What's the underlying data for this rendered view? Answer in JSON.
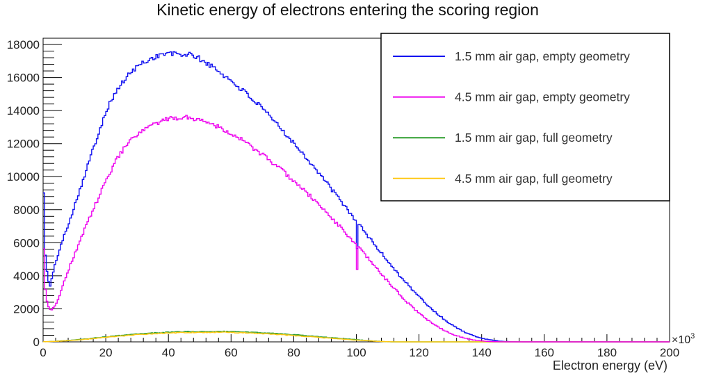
{
  "chart_data": {
    "type": "line",
    "subtype": "histogram-step",
    "title": "Kinetic energy of electrons entering the scoring region",
    "xlabel": "Electron energy (eV)",
    "ylabel": "",
    "x_axis_multiplier": "×10",
    "x_axis_multiplier_exponent": "3",
    "xlim": [
      0,
      200
    ],
    "ylim": [
      0,
      18380
    ],
    "x_ticks": [
      0,
      20,
      40,
      60,
      80,
      100,
      120,
      140,
      160,
      180,
      200
    ],
    "x_minor_tick_step": 4,
    "y_ticks": [
      0,
      2000,
      4000,
      6000,
      8000,
      10000,
      12000,
      14000,
      16000,
      18000
    ],
    "y_minor_tick_step": 400,
    "grid": false,
    "bin_width": 0.5,
    "legend_position": "top-right",
    "frame_color": "#000000",
    "text_color": "#222222",
    "draw_order": [
      0,
      2,
      3,
      1
    ],
    "series": [
      {
        "name": "1.5 mm air gap, empty geometry",
        "color": "#0f0ff0",
        "seed": 101,
        "noise": 1.25,
        "anomalies": [
          [
            100.25,
            5650
          ]
        ],
        "points": [
          [
            0.25,
            9100
          ],
          [
            0.75,
            5200
          ],
          [
            1.5,
            3800
          ],
          [
            2.2,
            3350
          ],
          [
            3.3,
            4250
          ],
          [
            4.4,
            5100
          ],
          [
            6.7,
            6400
          ],
          [
            9,
            7650
          ],
          [
            11,
            8800
          ],
          [
            13,
            9950
          ],
          [
            15.5,
            11400
          ],
          [
            17.8,
            12700
          ],
          [
            20,
            13950
          ],
          [
            22,
            14700
          ],
          [
            24,
            15350
          ],
          [
            26,
            15850
          ],
          [
            28,
            16300
          ],
          [
            30,
            16650
          ],
          [
            32,
            16900
          ],
          [
            34,
            17100
          ],
          [
            36,
            17280
          ],
          [
            38,
            17400
          ],
          [
            40,
            17460
          ],
          [
            42,
            17430
          ],
          [
            44,
            17380
          ],
          [
            46,
            17400
          ],
          [
            48,
            17330
          ],
          [
            50,
            17130
          ],
          [
            52,
            16900
          ],
          [
            54,
            16650
          ],
          [
            56,
            16380
          ],
          [
            58,
            16100
          ],
          [
            60,
            15800
          ],
          [
            62,
            15500
          ],
          [
            64,
            15180
          ],
          [
            66,
            14840
          ],
          [
            68,
            14480
          ],
          [
            70,
            14100
          ],
          [
            72,
            13710
          ],
          [
            74,
            13310
          ],
          [
            76,
            12900
          ],
          [
            78,
            12480
          ],
          [
            80,
            12050
          ],
          [
            82,
            11610
          ],
          [
            84,
            11160
          ],
          [
            86,
            10700
          ],
          [
            88,
            10230
          ],
          [
            90,
            9750
          ],
          [
            92,
            9270
          ],
          [
            94,
            8780
          ],
          [
            96,
            8290
          ],
          [
            98,
            7800
          ],
          [
            100,
            7310
          ],
          [
            102,
            6820
          ],
          [
            104,
            6330
          ],
          [
            106,
            5850
          ],
          [
            108,
            5370
          ],
          [
            110,
            4900
          ],
          [
            112,
            4440
          ],
          [
            114,
            3990
          ],
          [
            116,
            3560
          ],
          [
            118,
            3140
          ],
          [
            120,
            2740
          ],
          [
            122,
            2360
          ],
          [
            124,
            2000
          ],
          [
            126,
            1670
          ],
          [
            128,
            1370
          ],
          [
            130,
            1100
          ],
          [
            132,
            860
          ],
          [
            134,
            650
          ],
          [
            136,
            470
          ],
          [
            138,
            330
          ],
          [
            140,
            220
          ],
          [
            142,
            140
          ],
          [
            144,
            80
          ],
          [
            146,
            40
          ],
          [
            148,
            18
          ],
          [
            150,
            6
          ],
          [
            152,
            1
          ],
          [
            154,
            0
          ],
          [
            200,
            0
          ]
        ]
      },
      {
        "name": "4.5 mm air gap, empty geometry",
        "color": "#ee00ee",
        "seed": 202,
        "noise": 1.25,
        "anomalies": [
          [
            100.25,
            4390
          ]
        ],
        "points": [
          [
            0.25,
            5700
          ],
          [
            0.75,
            3100
          ],
          [
            1.5,
            2200
          ],
          [
            2.5,
            1900
          ],
          [
            4,
            2250
          ],
          [
            5.5,
            2950
          ],
          [
            7,
            3800
          ],
          [
            9,
            4780
          ],
          [
            11,
            5760
          ],
          [
            13,
            6700
          ],
          [
            15,
            7580
          ],
          [
            17,
            8420
          ],
          [
            19,
            9300
          ],
          [
            21,
            10100
          ],
          [
            23,
            10880
          ],
          [
            25,
            11500
          ],
          [
            27,
            11980
          ],
          [
            29,
            12350
          ],
          [
            31,
            12650
          ],
          [
            33,
            12900
          ],
          [
            35,
            13120
          ],
          [
            37,
            13290
          ],
          [
            39,
            13420
          ],
          [
            41,
            13510
          ],
          [
            43,
            13570
          ],
          [
            45,
            13600
          ],
          [
            47,
            13570
          ],
          [
            49,
            13500
          ],
          [
            51,
            13400
          ],
          [
            53,
            13270
          ],
          [
            55,
            13110
          ],
          [
            57,
            12930
          ],
          [
            59,
            12730
          ],
          [
            61,
            12510
          ],
          [
            63,
            12270
          ],
          [
            65,
            12020
          ],
          [
            67,
            11750
          ],
          [
            69,
            11470
          ],
          [
            71,
            11180
          ],
          [
            73,
            10880
          ],
          [
            75,
            10570
          ],
          [
            77,
            10250
          ],
          [
            79,
            9920
          ],
          [
            81,
            9580
          ],
          [
            83,
            9230
          ],
          [
            85,
            8870
          ],
          [
            87,
            8500
          ],
          [
            89,
            8120
          ],
          [
            91,
            7730
          ],
          [
            93,
            7330
          ],
          [
            95,
            6920
          ],
          [
            97,
            6500
          ],
          [
            99,
            6080
          ],
          [
            101,
            5650
          ],
          [
            103,
            5210
          ],
          [
            105,
            4770
          ],
          [
            107,
            4330
          ],
          [
            109,
            3890
          ],
          [
            111,
            3460
          ],
          [
            113,
            3040
          ],
          [
            115,
            2640
          ],
          [
            117,
            2260
          ],
          [
            119,
            1910
          ],
          [
            121,
            1590
          ],
          [
            123,
            1300
          ],
          [
            125,
            1040
          ],
          [
            127,
            810
          ],
          [
            129,
            615
          ],
          [
            131,
            450
          ],
          [
            133,
            315
          ],
          [
            135,
            210
          ],
          [
            137,
            130
          ],
          [
            139,
            75
          ],
          [
            141,
            40
          ],
          [
            143,
            18
          ],
          [
            145,
            7
          ],
          [
            147,
            2
          ],
          [
            149,
            0
          ],
          [
            200,
            0
          ]
        ]
      },
      {
        "name": "1.5 mm air gap, full geometry",
        "color": "#2e9e2e",
        "seed": 303,
        "noise": 1.0,
        "anomalies": [],
        "points": [
          [
            0.5,
            10
          ],
          [
            3,
            30
          ],
          [
            6,
            60
          ],
          [
            9,
            100
          ],
          [
            12,
            150
          ],
          [
            15,
            205
          ],
          [
            18,
            260
          ],
          [
            21,
            320
          ],
          [
            24,
            375
          ],
          [
            27,
            425
          ],
          [
            30,
            470
          ],
          [
            33,
            510
          ],
          [
            36,
            545
          ],
          [
            39,
            575
          ],
          [
            42,
            598
          ],
          [
            45,
            613
          ],
          [
            48,
            622
          ],
          [
            51,
            628
          ],
          [
            54,
            630
          ],
          [
            57,
            628
          ],
          [
            60,
            620
          ],
          [
            63,
            605
          ],
          [
            66,
            585
          ],
          [
            69,
            560
          ],
          [
            72,
            530
          ],
          [
            75,
            495
          ],
          [
            78,
            455
          ],
          [
            81,
            415
          ],
          [
            84,
            370
          ],
          [
            87,
            325
          ],
          [
            90,
            280
          ],
          [
            93,
            235
          ],
          [
            96,
            190
          ],
          [
            99,
            145
          ],
          [
            102,
            100
          ],
          [
            105,
            60
          ],
          [
            107,
            35
          ],
          [
            109,
            15
          ],
          [
            110,
            5
          ],
          [
            111,
            0
          ],
          [
            200,
            0
          ]
        ]
      },
      {
        "name": "4.5 mm air gap, full geometry",
        "color": "#ffc814",
        "seed": 404,
        "noise": 1.0,
        "anomalies": [],
        "points": [
          [
            0.5,
            8
          ],
          [
            3,
            25
          ],
          [
            6,
            50
          ],
          [
            9,
            85
          ],
          [
            12,
            130
          ],
          [
            15,
            180
          ],
          [
            18,
            235
          ],
          [
            21,
            290
          ],
          [
            24,
            340
          ],
          [
            27,
            390
          ],
          [
            30,
            432
          ],
          [
            33,
            470
          ],
          [
            36,
            503
          ],
          [
            39,
            530
          ],
          [
            42,
            550
          ],
          [
            45,
            565
          ],
          [
            48,
            575
          ],
          [
            51,
            580
          ],
          [
            54,
            580
          ],
          [
            57,
            577
          ],
          [
            60,
            568
          ],
          [
            63,
            553
          ],
          [
            66,
            533
          ],
          [
            69,
            508
          ],
          [
            72,
            478
          ],
          [
            75,
            444
          ],
          [
            78,
            407
          ],
          [
            81,
            367
          ],
          [
            84,
            325
          ],
          [
            87,
            282
          ],
          [
            90,
            240
          ],
          [
            93,
            198
          ],
          [
            96,
            157
          ],
          [
            99,
            118
          ],
          [
            102,
            82
          ],
          [
            105,
            50
          ],
          [
            108,
            24
          ],
          [
            110,
            10
          ],
          [
            112,
            3
          ],
          [
            113,
            0
          ],
          [
            200,
            0
          ]
        ]
      }
    ],
    "legend": {
      "entries": [
        "1.5 mm air gap, empty geometry",
        "4.5 mm air gap, empty geometry",
        "1.5 mm air gap, full geometry",
        "4.5 mm air gap, full geometry"
      ]
    }
  }
}
